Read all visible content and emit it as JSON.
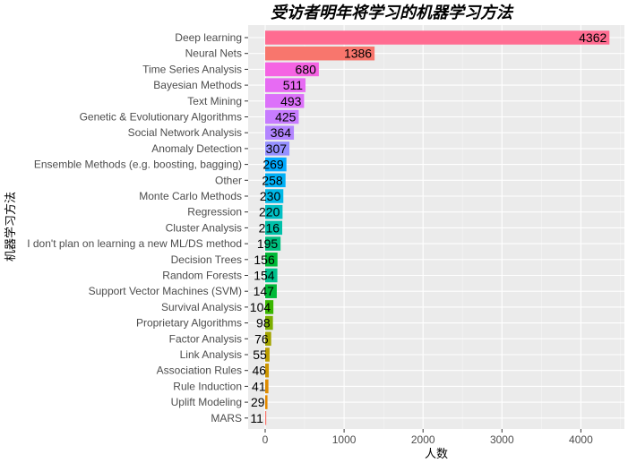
{
  "chart_data": {
    "type": "bar",
    "orientation": "horizontal",
    "title": "受访者明年将学习的机器学习方法",
    "xlabel": "人数",
    "ylabel": "机器学习方法",
    "xlim": [
      0,
      4500
    ],
    "x_ticks": [
      "0",
      "1000",
      "2000",
      "3000",
      "4000"
    ],
    "x_tick_values": [
      0,
      1000,
      2000,
      3000,
      4000
    ],
    "grid": true,
    "legend": "none",
    "categories": [
      "Deep learning",
      "Neural Nets",
      "Time Series Analysis",
      "Bayesian Methods",
      "Text Mining",
      "Genetic & Evolutionary Algorithms",
      "Social Network Analysis",
      "Anomaly Detection",
      "Ensemble Methods (e.g. boosting, bagging)",
      "Other",
      "Monte Carlo Methods",
      "Regression",
      "Cluster Analysis",
      "I don't plan on learning a new ML/DS method",
      "Decision Trees",
      "Random Forests",
      "Support Vector Machines (SVM)",
      "Survival Analysis",
      "Proprietary Algorithms",
      "Factor Analysis",
      "Link Analysis",
      "Association Rules",
      "Rule Induction",
      "Uplift Modeling",
      "MARS"
    ],
    "values": [
      4362,
      1386,
      680,
      511,
      493,
      425,
      364,
      307,
      269,
      258,
      230,
      220,
      216,
      195,
      156,
      154,
      147,
      104,
      98,
      76,
      55,
      46,
      41,
      29,
      11
    ],
    "colors": [
      "#FF6C91",
      "#F8766D",
      "#F564E3",
      "#E76BF3",
      "#DC71FA",
      "#C77CFF",
      "#B385FF",
      "#9590FF",
      "#00A9FF",
      "#00B0F6",
      "#00B8E7",
      "#00BFC4",
      "#00C1A9",
      "#00BF7D",
      "#00BA38",
      "#00C08B",
      "#00BA38",
      "#39B600",
      "#7CAE00",
      "#A3A500",
      "#BB9D00",
      "#CD9600",
      "#DE8C00",
      "#E38900",
      "#F8766D"
    ]
  }
}
